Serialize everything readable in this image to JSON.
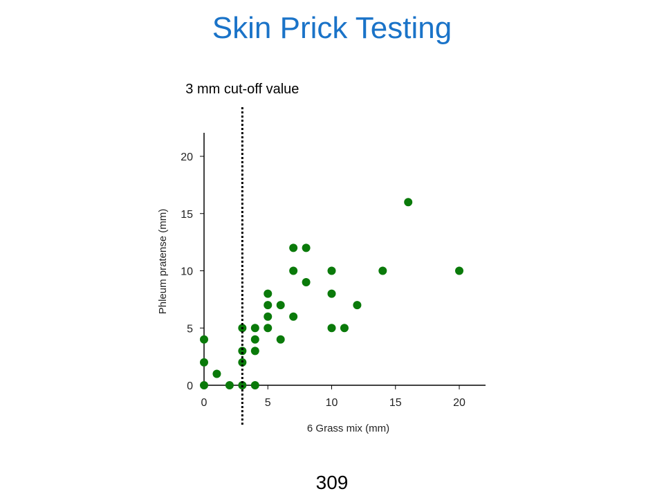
{
  "slide": {
    "title": "Skin Prick Testing",
    "page_number": "309",
    "title_color": "#1a73c8"
  },
  "chart_data": {
    "type": "scatter",
    "xlabel": "6 Grass mix (mm)",
    "ylabel": "Phleum pratense (mm)",
    "xlim": [
      0,
      22
    ],
    "ylim": [
      0,
      20
    ],
    "xticks": [
      0,
      5,
      10,
      15,
      20
    ],
    "yticks": [
      0,
      5,
      10,
      15,
      20
    ],
    "grid": false,
    "point_color": "#0a7a0a",
    "annotation": {
      "text": "3 mm cut-off value",
      "x": 3
    },
    "points": [
      [
        0,
        0
      ],
      [
        0,
        2
      ],
      [
        0,
        4
      ],
      [
        1,
        1
      ],
      [
        2,
        0
      ],
      [
        3,
        0
      ],
      [
        3,
        2
      ],
      [
        3,
        3
      ],
      [
        3,
        5
      ],
      [
        4,
        0
      ],
      [
        4,
        3
      ],
      [
        4,
        4
      ],
      [
        4,
        5
      ],
      [
        5,
        5
      ],
      [
        5,
        6
      ],
      [
        5,
        7
      ],
      [
        5,
        8
      ],
      [
        6,
        4
      ],
      [
        6,
        7
      ],
      [
        7,
        6
      ],
      [
        7,
        10
      ],
      [
        7,
        12
      ],
      [
        8,
        9
      ],
      [
        8,
        12
      ],
      [
        10,
        5
      ],
      [
        10,
        8
      ],
      [
        10,
        10
      ],
      [
        11,
        5
      ],
      [
        12,
        7
      ],
      [
        14,
        10
      ],
      [
        16,
        16
      ],
      [
        20,
        10
      ]
    ]
  }
}
